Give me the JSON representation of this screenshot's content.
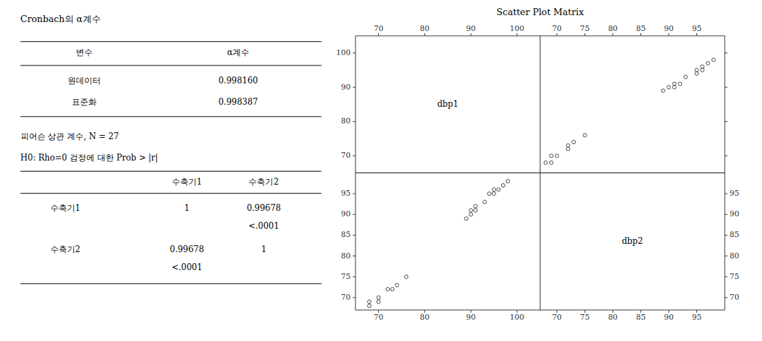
{
  "chart_data": [
    {
      "type": "table",
      "title": "Cronbach의 α계수",
      "columns": [
        "변수",
        "α계수"
      ],
      "rows": [
        [
          "원데이터",
          "0.998160"
        ],
        [
          "표준화",
          "0.998387"
        ]
      ]
    },
    {
      "type": "table",
      "title": "피어슨 상관 계수, N = 27",
      "subtitle": "H0: Rho=0 검정에 대한 Prob > |r|",
      "columns": [
        "수축기1",
        "수축기2"
      ],
      "rows": [
        {
          "label": "수축기1",
          "values": [
            "1",
            "0.99678"
          ],
          "p_values": [
            null,
            "<.0001"
          ]
        },
        {
          "label": "수축기2",
          "values": [
            "0.99678",
            "1"
          ],
          "p_values": [
            "<.0001",
            null
          ]
        }
      ]
    },
    {
      "type": "scatter_matrix",
      "title": "Scatter Plot Matrix",
      "marker": "open-circle",
      "color": "#444444",
      "variables": [
        {
          "name": "dbp1",
          "values": [
            68,
            68,
            70,
            70,
            72,
            73,
            74,
            76,
            89,
            90,
            90,
            91,
            91,
            93,
            94,
            95,
            95,
            96,
            97,
            98
          ],
          "lim": [
            65,
            105
          ],
          "ticks": [
            70,
            80,
            90,
            100
          ]
        },
        {
          "name": "dbp2",
          "values": [
            68,
            69,
            69,
            70,
            72,
            72,
            73,
            75,
            89,
            90,
            91,
            91,
            92,
            93,
            95,
            95,
            96,
            96,
            97,
            98
          ],
          "lim": [
            67,
            100
          ],
          "ticks": [
            70,
            75,
            80,
            85,
            90,
            95
          ]
        }
      ]
    }
  ]
}
